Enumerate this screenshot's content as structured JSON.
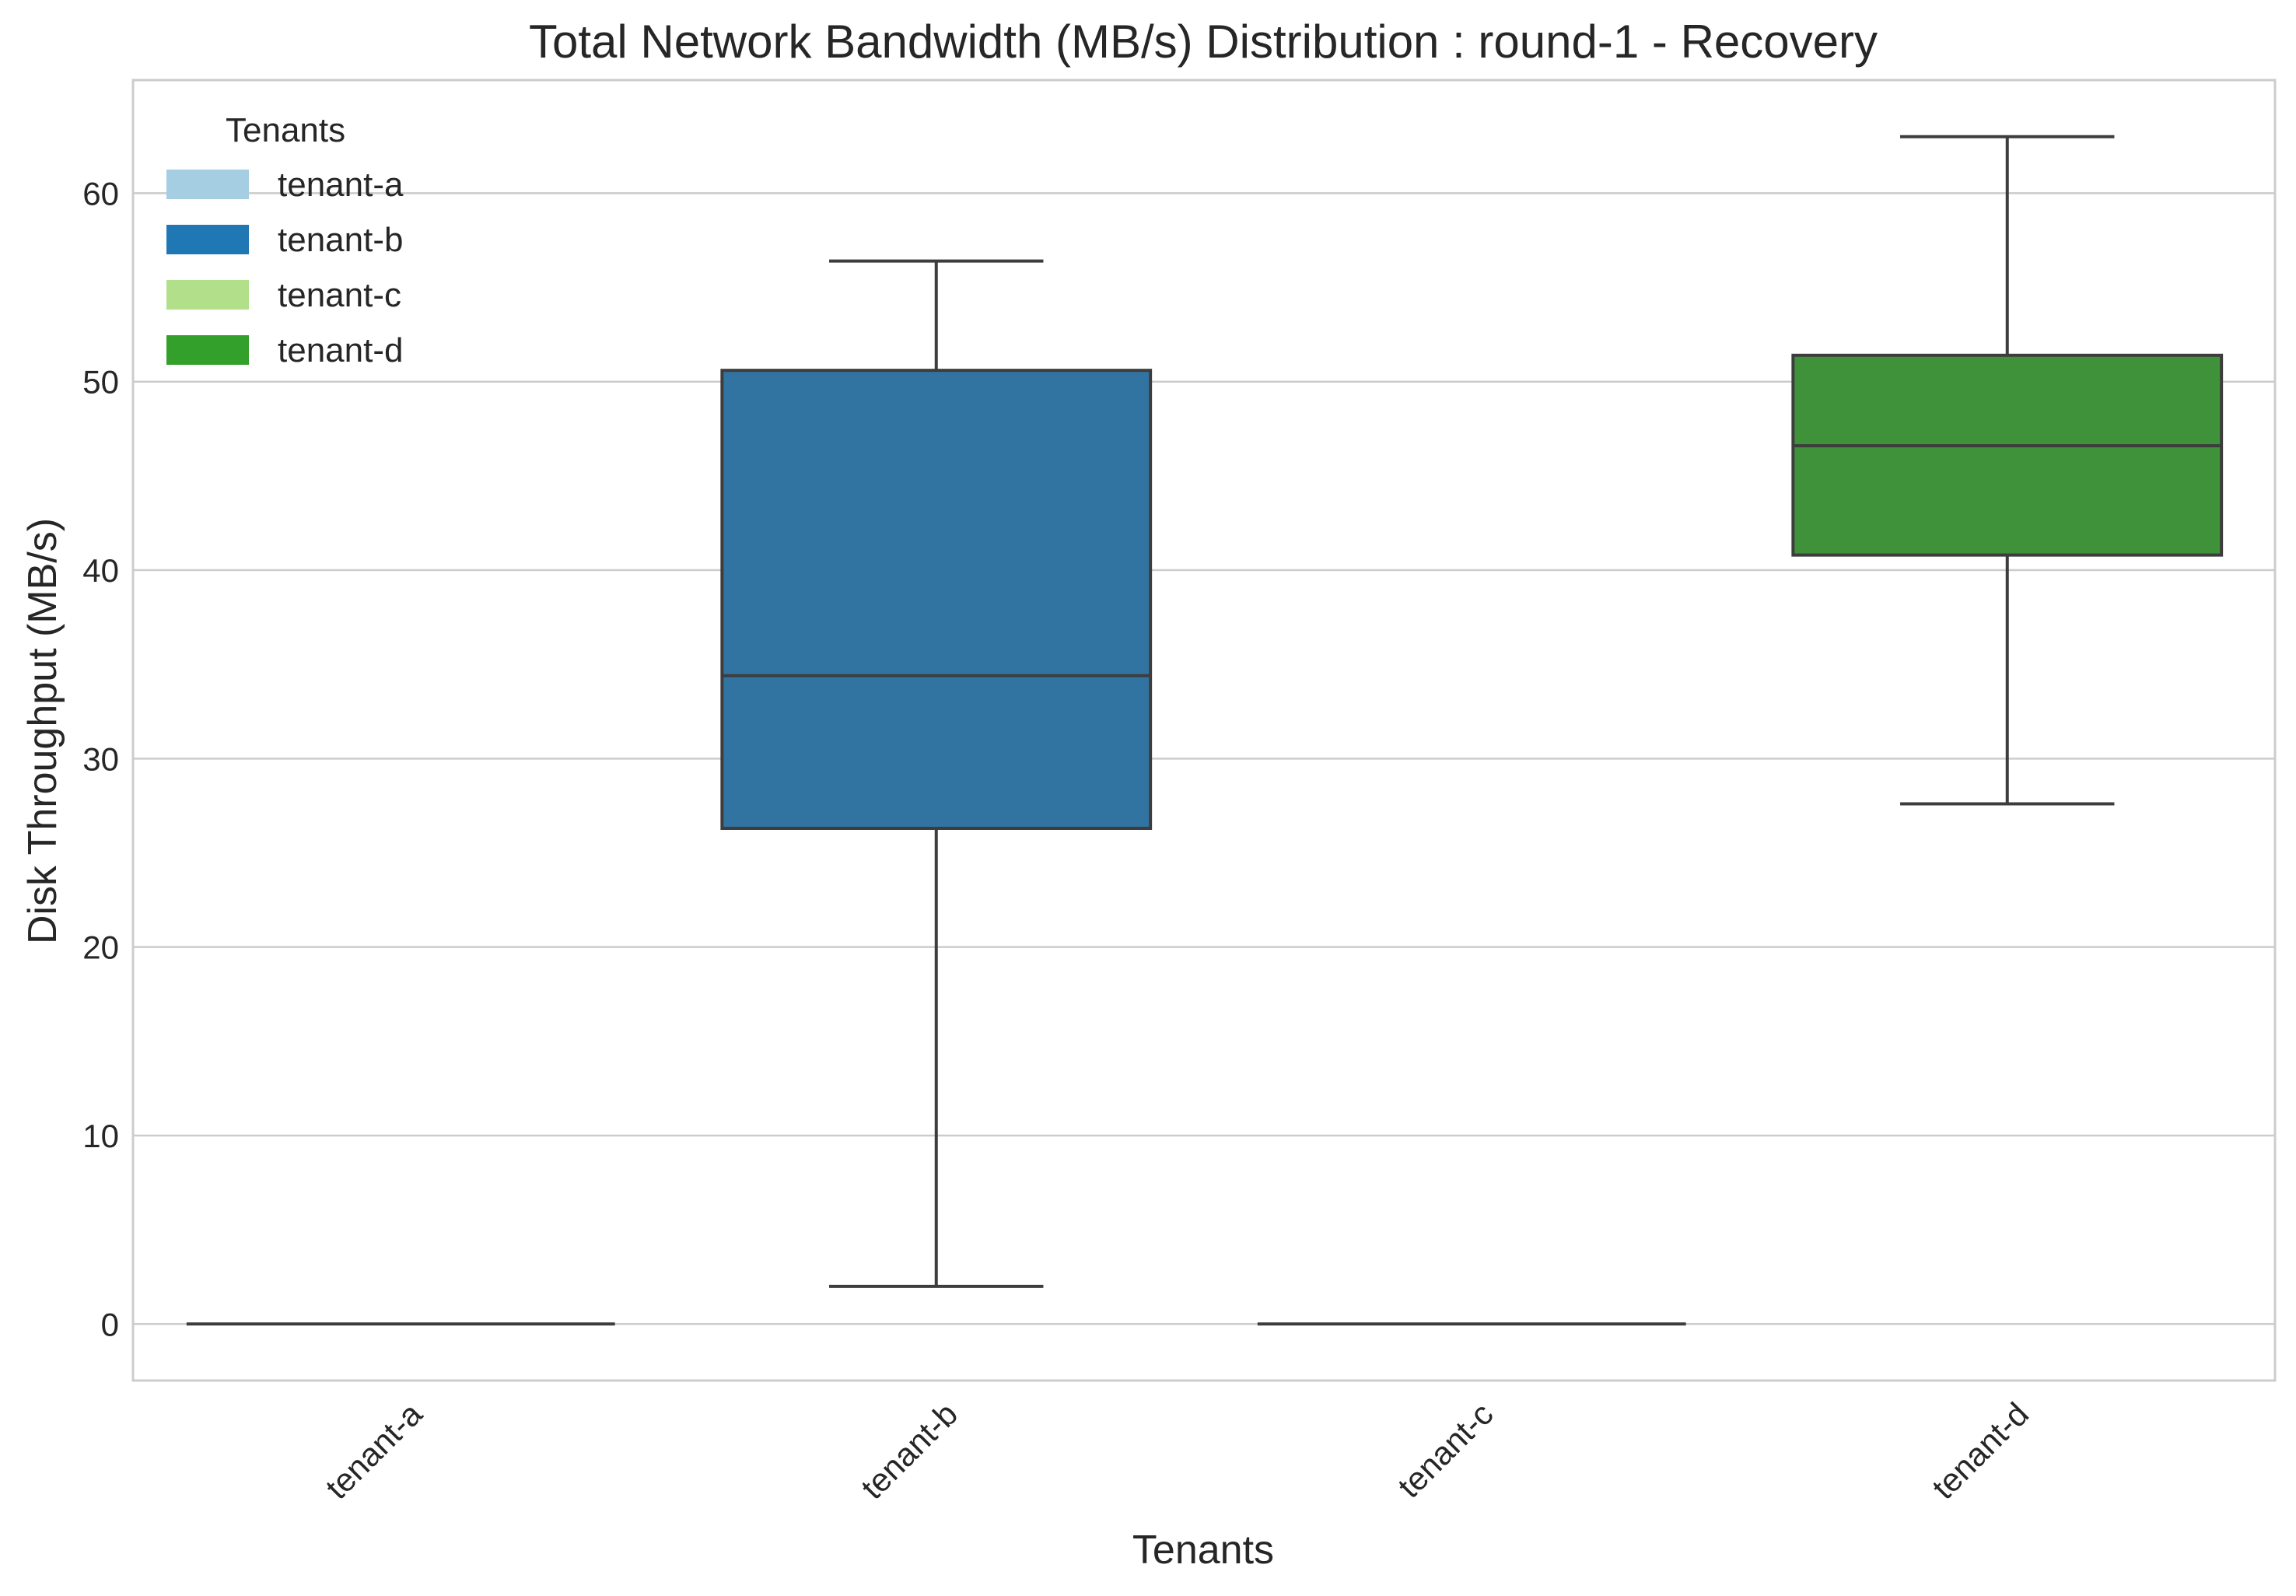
{
  "chart_data": {
    "type": "box",
    "title": "Total Network Bandwidth (MB/s) Distribution : round-1 - Recovery",
    "xlabel": "Tenants",
    "ylabel": "Disk Throughput (MB/s)",
    "ylim": [
      -3,
      66
    ],
    "yticks": [
      0,
      10,
      20,
      30,
      40,
      50,
      60
    ],
    "grid": true,
    "legend": {
      "title": "Tenants",
      "placement": "top-left",
      "entries": [
        {
          "label": "tenant-a",
          "color": "#a6cee3"
        },
        {
          "label": "tenant-b",
          "color": "#1f78b4"
        },
        {
          "label": "tenant-c",
          "color": "#b2df8a"
        },
        {
          "label": "tenant-d",
          "color": "#33a02c"
        }
      ]
    },
    "categories": [
      "tenant-a",
      "tenant-b",
      "tenant-c",
      "tenant-d"
    ],
    "boxes": [
      {
        "category": "tenant-a",
        "min": 0,
        "q1": 0,
        "median": 0,
        "q3": 0,
        "max": 0,
        "color": "#a6cee3"
      },
      {
        "category": "tenant-b",
        "min": 2.0,
        "q1": 26.3,
        "median": 34.4,
        "q3": 50.6,
        "max": 56.4,
        "color": "#3274a1"
      },
      {
        "category": "tenant-c",
        "min": 0,
        "q1": 0,
        "median": 0,
        "q3": 0,
        "max": 0,
        "color": "#b2df8a"
      },
      {
        "category": "tenant-d",
        "min": 27.6,
        "q1": 40.8,
        "median": 46.6,
        "q3": 51.4,
        "max": 63.0,
        "color": "#3f913a"
      }
    ]
  }
}
